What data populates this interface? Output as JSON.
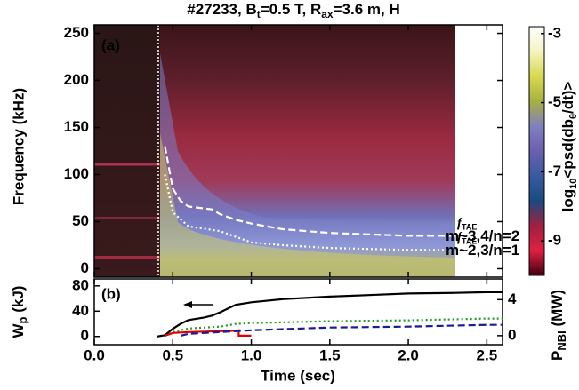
{
  "title": [
    "#27233, B",
    "t",
    "=0.5 T, R",
    "ax",
    "=3.6 m, H"
  ],
  "chart_data": [
    {
      "type": "line",
      "panel_label": "(a)",
      "ylabel": "Frequency (kHz)",
      "xlim": [
        0,
        2.6
      ],
      "ylim": [
        -9,
        259
      ],
      "yticks": [
        0,
        50,
        100,
        150,
        200,
        250
      ],
      "series": [
        {
          "annotation": [
            "f",
            "TAE",
            "m~3,4/n=2"
          ],
          "color": "#ffffff",
          "dash": "dashed",
          "x": [
            0.45,
            0.5,
            0.55,
            0.6,
            0.7,
            0.75,
            0.8,
            0.9,
            1.0,
            1.2,
            1.5,
            2.0,
            2.3,
            2.5
          ],
          "values": [
            130,
            85,
            72,
            66,
            64,
            63,
            58,
            52,
            48,
            42,
            38,
            35,
            35,
            35
          ]
        },
        {
          "annotation": [
            "f",
            "TAE",
            "m~2,3/n=1"
          ],
          "color": "#ffffff",
          "dash": "dotted",
          "x": [
            0.45,
            0.5,
            0.6,
            0.8,
            1.0,
            1.2,
            1.5,
            2.0,
            2.3,
            2.5
          ],
          "values": [
            100,
            60,
            45,
            40,
            28,
            25,
            22,
            20,
            20,
            20
          ]
        }
      ]
    },
    {
      "type": "line",
      "panel_label": "(b)",
      "ylabel": [
        "W",
        "p",
        " (kJ)"
      ],
      "y2label": [
        "P",
        "NBI",
        " (MW)"
      ],
      "xlabel": "Time (sec)",
      "xlim": [
        0,
        2.6
      ],
      "xticks": [
        {
          "value": 0,
          "label": "0.0"
        },
        {
          "value": 0.5,
          "label": "0.5"
        },
        {
          "value": 1,
          "label": "1.0"
        },
        {
          "value": 1.5,
          "label": "1.5"
        },
        {
          "value": 2,
          "label": "2.0"
        },
        {
          "value": 2.5,
          "label": "2.5"
        }
      ],
      "ylim": [
        -13,
        91
      ],
      "yticks": [
        0,
        40,
        80
      ],
      "y2lim": [
        -1,
        6.3
      ],
      "y2ticks": [
        0,
        4
      ],
      "series": [
        {
          "color": "#000000",
          "dash": "solid",
          "x": [
            0.4,
            0.45,
            0.5,
            0.55,
            0.6,
            0.7,
            0.75,
            0.8,
            0.85,
            0.9,
            1.0,
            1.2,
            1.5,
            1.8,
            2.0,
            2.3,
            2.5,
            2.6
          ],
          "values": [
            0,
            2,
            12,
            20,
            26,
            30,
            33,
            38,
            44,
            50,
            54,
            59,
            63,
            66,
            68,
            69,
            70,
            70
          ]
        },
        {
          "color": "#2a9a2a",
          "dash": "dotted",
          "axis": "y2",
          "x": [
            0.45,
            0.5,
            0.6,
            0.8,
            0.9,
            1.0,
            1.5,
            2.0,
            2.5,
            2.6
          ],
          "values": [
            0,
            0.4,
            0.8,
            1.0,
            1.3,
            1.4,
            1.6,
            1.7,
            1.9,
            1.9
          ]
        },
        {
          "color": "#e00000",
          "dash": "solid",
          "axis": "y2",
          "x": [
            0.45,
            0.5,
            0.6,
            0.8,
            0.9,
            0.92,
            0.92,
            1.0
          ],
          "values": [
            0,
            0.3,
            0.4,
            0.5,
            0.55,
            0.6,
            0,
            0
          ]
        },
        {
          "color": "#1a1a9a",
          "dash": "dashed",
          "axis": "y2",
          "x": [
            0.55,
            0.6,
            0.8,
            1.0,
            1.5,
            2.0,
            2.5,
            2.6
          ],
          "values": [
            0,
            0.2,
            0.4,
            0.6,
            0.9,
            1.0,
            1.2,
            1.2
          ]
        }
      ]
    },
    {
      "type": "colorbar",
      "label": [
        "log",
        "10",
        "<psd(db",
        "θ",
        "/dt)>"
      ],
      "ylim": [
        -10,
        -2.8
      ],
      "yticks": [
        -3,
        -5,
        -7,
        -9
      ],
      "colors": [
        "#ffffff",
        "#f4f4c0",
        "#d8d850",
        "#a8b040",
        "#8080c0",
        "#6a60b0",
        "#3a5aa0",
        "#1a4a80",
        "#a02040",
        "#e02040",
        "#400010"
      ]
    }
  ]
}
